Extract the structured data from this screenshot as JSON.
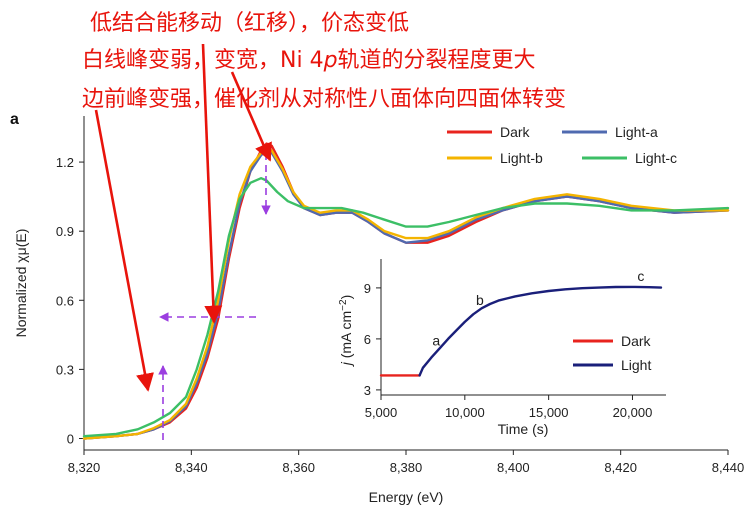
{
  "figure": {
    "panel_label": "a",
    "annotations": [
      "低结合能移动（红移），价态变低",
      "白线峰变弱，变宽，Ni 4p轨道的分裂程度更大",
      "边前峰变强，催化剂从对称性八面体向四面体转变"
    ],
    "annotation_italic_char": "p",
    "colors": {
      "dark": "#e8231e",
      "light_a": "#4f6ab0",
      "light_b": "#f4b400",
      "light_c": "#3cbf66",
      "inset_light": "#1a1f7a",
      "arrow": "#e8140c",
      "dashed": "#9b3ee0"
    }
  },
  "chart_data": [
    {
      "type": "line",
      "xlabel": "Energy (eV)",
      "ylabel": "Normalized χμ(E)",
      "xlim": [
        8320,
        8440
      ],
      "ylim": [
        -0.05,
        1.4
      ],
      "xticks": [
        "8,320",
        "8,340",
        "8,360",
        "8,380",
        "8,400",
        "8,420",
        "8,440"
      ],
      "xtick_values": [
        8320,
        8340,
        8360,
        8380,
        8400,
        8420,
        8440
      ],
      "yticks": [
        "0",
        "0.3",
        "0.6",
        "0.9",
        "1.2"
      ],
      "ytick_values": [
        0,
        0.3,
        0.6,
        0.9,
        1.2
      ],
      "legend_position": "top-right",
      "series": [
        {
          "name": "Dark",
          "color": "#e8231e",
          "points": [
            [
              8320,
              0.0
            ],
            [
              8326,
              0.01
            ],
            [
              8330,
              0.02
            ],
            [
              8333,
              0.04
            ],
            [
              8336,
              0.07
            ],
            [
              8339,
              0.13
            ],
            [
              8341,
              0.22
            ],
            [
              8343,
              0.35
            ],
            [
              8345,
              0.52
            ],
            [
              8347,
              0.78
            ],
            [
              8349,
              1.0
            ],
            [
              8351,
              1.16
            ],
            [
              8353,
              1.25
            ],
            [
              8354,
              1.28
            ],
            [
              8355,
              1.27
            ],
            [
              8357,
              1.18
            ],
            [
              8359,
              1.07
            ],
            [
              8361,
              1.0
            ],
            [
              8364,
              0.97
            ],
            [
              8367,
              0.98
            ],
            [
              8370,
              0.98
            ],
            [
              8373,
              0.94
            ],
            [
              8376,
              0.89
            ],
            [
              8380,
              0.85
            ],
            [
              8384,
              0.85
            ],
            [
              8388,
              0.88
            ],
            [
              8393,
              0.94
            ],
            [
              8398,
              0.99
            ],
            [
              8404,
              1.03
            ],
            [
              8410,
              1.05
            ],
            [
              8416,
              1.03
            ],
            [
              8422,
              1.0
            ],
            [
              8430,
              0.98
            ],
            [
              8440,
              0.99
            ]
          ]
        },
        {
          "name": "Light-a",
          "color": "#4f6ab0",
          "points": [
            [
              8320,
              0.0
            ],
            [
              8326,
              0.01
            ],
            [
              8330,
              0.02
            ],
            [
              8333,
              0.04
            ],
            [
              8336,
              0.075
            ],
            [
              8339,
              0.14
            ],
            [
              8341,
              0.24
            ],
            [
              8343,
              0.37
            ],
            [
              8345,
              0.55
            ],
            [
              8347,
              0.8
            ],
            [
              8349,
              1.02
            ],
            [
              8351,
              1.16
            ],
            [
              8353,
              1.23
            ],
            [
              8354,
              1.25
            ],
            [
              8355,
              1.24
            ],
            [
              8357,
              1.16
            ],
            [
              8359,
              1.06
            ],
            [
              8361,
              1.0
            ],
            [
              8364,
              0.97
            ],
            [
              8367,
              0.98
            ],
            [
              8370,
              0.98
            ],
            [
              8373,
              0.94
            ],
            [
              8376,
              0.89
            ],
            [
              8380,
              0.85
            ],
            [
              8384,
              0.86
            ],
            [
              8388,
              0.89
            ],
            [
              8393,
              0.95
            ],
            [
              8398,
              0.99
            ],
            [
              8404,
              1.03
            ],
            [
              8410,
              1.05
            ],
            [
              8416,
              1.03
            ],
            [
              8422,
              1.0
            ],
            [
              8430,
              0.98
            ],
            [
              8440,
              0.99
            ]
          ]
        },
        {
          "name": "Light-b",
          "color": "#f4b400",
          "points": [
            [
              8320,
              0.0
            ],
            [
              8326,
              0.01
            ],
            [
              8330,
              0.02
            ],
            [
              8333,
              0.045
            ],
            [
              8336,
              0.08
            ],
            [
              8339,
              0.15
            ],
            [
              8341,
              0.26
            ],
            [
              8343,
              0.4
            ],
            [
              8345,
              0.6
            ],
            [
              8347,
              0.86
            ],
            [
              8349,
              1.06
            ],
            [
              8351,
              1.18
            ],
            [
              8353,
              1.24
            ],
            [
              8354,
              1.26
            ],
            [
              8355,
              1.25
            ],
            [
              8357,
              1.17
            ],
            [
              8359,
              1.07
            ],
            [
              8361,
              1.01
            ],
            [
              8364,
              0.98
            ],
            [
              8367,
              0.99
            ],
            [
              8370,
              0.99
            ],
            [
              8373,
              0.95
            ],
            [
              8376,
              0.9
            ],
            [
              8380,
              0.87
            ],
            [
              8384,
              0.87
            ],
            [
              8388,
              0.9
            ],
            [
              8393,
              0.96
            ],
            [
              8398,
              1.0
            ],
            [
              8404,
              1.04
            ],
            [
              8410,
              1.06
            ],
            [
              8416,
              1.04
            ],
            [
              8422,
              1.01
            ],
            [
              8430,
              0.99
            ],
            [
              8440,
              0.99
            ]
          ]
        },
        {
          "name": "Light-c",
          "color": "#3cbf66",
          "points": [
            [
              8320,
              0.01
            ],
            [
              8326,
              0.02
            ],
            [
              8330,
              0.04
            ],
            [
              8333,
              0.07
            ],
            [
              8336,
              0.11
            ],
            [
              8339,
              0.18
            ],
            [
              8341,
              0.3
            ],
            [
              8343,
              0.45
            ],
            [
              8345,
              0.64
            ],
            [
              8347,
              0.88
            ],
            [
              8349,
              1.04
            ],
            [
              8351,
              1.11
            ],
            [
              8353,
              1.13
            ],
            [
              8354,
              1.12
            ],
            [
              8356,
              1.07
            ],
            [
              8358,
              1.03
            ],
            [
              8361,
              1.0
            ],
            [
              8364,
              1.0
            ],
            [
              8368,
              1.0
            ],
            [
              8372,
              0.98
            ],
            [
              8376,
              0.95
            ],
            [
              8380,
              0.92
            ],
            [
              8384,
              0.92
            ],
            [
              8388,
              0.94
            ],
            [
              8393,
              0.97
            ],
            [
              8398,
              1.0
            ],
            [
              8404,
              1.02
            ],
            [
              8410,
              1.02
            ],
            [
              8416,
              1.01
            ],
            [
              8422,
              0.99
            ],
            [
              8430,
              0.99
            ],
            [
              8440,
              1.0
            ]
          ]
        }
      ]
    },
    {
      "type": "line",
      "xlabel": "Time (s)",
      "ylabel": "j (mA cm⁻²)",
      "ylabel_parts": {
        "italic": "j",
        "rest": " (mA cm",
        "sup": "−2",
        "end": ")"
      },
      "xlim": [
        5000,
        22000
      ],
      "ylim": [
        2.7,
        10.7
      ],
      "xticks": [
        "5,000",
        "10,000",
        "15,000",
        "20,000"
      ],
      "xtick_values": [
        5000,
        10000,
        15000,
        20000
      ],
      "yticks": [
        "3",
        "6",
        "9"
      ],
      "ytick_values": [
        3,
        6,
        9
      ],
      "legend_position": "bottom-right",
      "point_labels": [
        {
          "text": "a",
          "x": 8300,
          "y": 5.6
        },
        {
          "text": "b",
          "x": 10900,
          "y": 8.0
        },
        {
          "text": "c",
          "x": 20500,
          "y": 9.4
        }
      ],
      "series": [
        {
          "name": "Dark",
          "color": "#e8231e",
          "points": [
            [
              5000,
              3.85
            ],
            [
              6000,
              3.85
            ],
            [
              7000,
              3.85
            ],
            [
              7300,
              3.85
            ]
          ]
        },
        {
          "name": "Light",
          "color": "#1a1f7a",
          "points": [
            [
              7300,
              3.85
            ],
            [
              7500,
              4.3
            ],
            [
              8000,
              4.9
            ],
            [
              8500,
              5.45
            ],
            [
              9000,
              6.0
            ],
            [
              9500,
              6.5
            ],
            [
              10000,
              7.0
            ],
            [
              10500,
              7.45
            ],
            [
              11000,
              7.8
            ],
            [
              11500,
              8.05
            ],
            [
              12000,
              8.25
            ],
            [
              13000,
              8.5
            ],
            [
              14000,
              8.68
            ],
            [
              15000,
              8.82
            ],
            [
              16000,
              8.92
            ],
            [
              17000,
              8.98
            ],
            [
              18000,
              9.02
            ],
            [
              19000,
              9.05
            ],
            [
              20000,
              9.06
            ],
            [
              21000,
              9.04
            ],
            [
              21700,
              9.02
            ]
          ]
        }
      ]
    }
  ]
}
